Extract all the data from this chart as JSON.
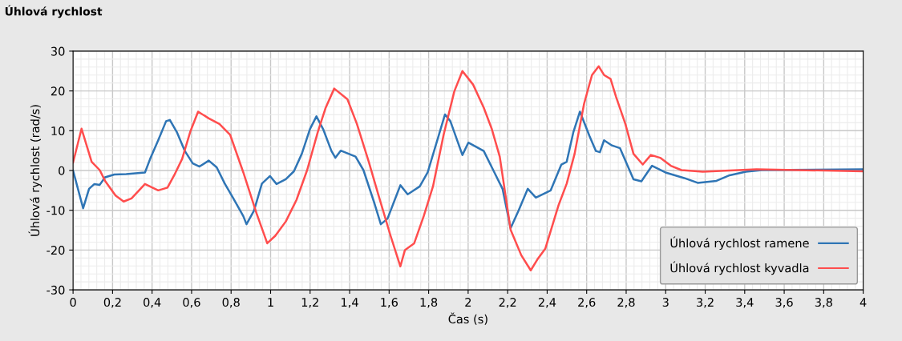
{
  "chart_data": {
    "type": "line",
    "title": "Úhlová rychlost",
    "xlabel": "Čas (s)",
    "ylabel": "Úhlová rychlost (rad/s)",
    "xlim": [
      0,
      4
    ],
    "ylim": [
      -30,
      30
    ],
    "xticks": [
      0,
      {
        "value": 0.2,
        "label": "0,2"
      },
      {
        "value": 0.4,
        "label": "0,4"
      },
      {
        "value": 0.6,
        "label": "0,6"
      },
      {
        "value": 0.8,
        "label": "0,8"
      },
      1,
      {
        "value": 1.2,
        "label": "1,2"
      },
      {
        "value": 1.4,
        "label": "1,4"
      },
      {
        "value": 1.6,
        "label": "1,6"
      },
      {
        "value": 1.8,
        "label": "1,8"
      },
      2,
      {
        "value": 2.2,
        "label": "2,2"
      },
      {
        "value": 2.4,
        "label": "2,4"
      },
      {
        "value": 2.6,
        "label": "2,6"
      },
      {
        "value": 2.8,
        "label": "2,8"
      },
      3,
      {
        "value": 3.2,
        "label": "3,2"
      },
      {
        "value": 3.4,
        "label": "3,4"
      },
      {
        "value": 3.6,
        "label": "3,6"
      },
      {
        "value": 3.8,
        "label": "3,8"
      },
      4
    ],
    "yticks": [
      -30,
      -20,
      -10,
      0,
      10,
      20,
      30
    ],
    "grid": true,
    "legend": "bottom right",
    "line_style": "solid",
    "marker": "none",
    "series": [
      {
        "name": "Úhlová rychlost ramene",
        "color": "#2f75b5",
        "x": [
          0,
          0.051,
          0.081,
          0.108,
          0.135,
          0.162,
          0.209,
          0.269,
          0.364,
          0.39,
          0.431,
          0.471,
          0.49,
          0.525,
          0.566,
          0.606,
          0.64,
          0.687,
          0.727,
          0.768,
          0.808,
          0.862,
          0.878,
          0.916,
          0.956,
          0.997,
          1.03,
          1.077,
          1.118,
          1.158,
          1.199,
          1.232,
          1.266,
          1.308,
          1.328,
          1.355,
          1.43,
          1.47,
          1.524,
          1.558,
          1.592,
          1.626,
          1.657,
          1.694,
          1.755,
          1.795,
          1.836,
          1.883,
          1.91,
          1.971,
          2.001,
          2.079,
          2.133,
          2.174,
          2.215,
          2.255,
          2.302,
          2.343,
          2.418,
          2.472,
          2.499,
          2.533,
          2.566,
          2.614,
          2.647,
          2.667,
          2.688,
          2.728,
          2.769,
          2.837,
          2.877,
          2.931,
          2.999,
          3.094,
          3.162,
          3.257,
          3.324,
          3.406,
          3.487,
          4.0
        ],
        "values": [
          0,
          -9.5,
          -4.6,
          -3.4,
          -3.6,
          -1.7,
          -1.0,
          -0.9,
          -0.5,
          2.9,
          7.6,
          12.4,
          12.7,
          9.7,
          4.9,
          1.8,
          1.0,
          2.5,
          0.8,
          -3.3,
          -6.7,
          -11.5,
          -13.5,
          -10.1,
          -3.3,
          -1.4,
          -3.4,
          -2.2,
          -0.2,
          4.2,
          10.4,
          13.6,
          10.4,
          4.9,
          3.2,
          5.0,
          3.5,
          0.1,
          -8.0,
          -13.5,
          -12.1,
          -7.7,
          -3.7,
          -6.0,
          -4.0,
          -0.5,
          6.3,
          14.1,
          12.4,
          3.9,
          7.0,
          4.9,
          -0.5,
          -4.6,
          -14.5,
          -10.1,
          -4.6,
          -6.8,
          -5.0,
          1.5,
          2.2,
          9.7,
          14.8,
          8.7,
          4.9,
          4.6,
          7.6,
          6.3,
          5.6,
          -2.2,
          -2.7,
          1.2,
          -0.5,
          -1.9,
          -3.1,
          -2.6,
          -1.2,
          -0.3,
          0.1,
          0.3
        ]
      },
      {
        "name": "Úhlová rychlost kyvadla",
        "color": "#ff4d4d",
        "x": [
          0,
          0.043,
          0.094,
          0.135,
          0.162,
          0.215,
          0.256,
          0.296,
          0.364,
          0.431,
          0.478,
          0.512,
          0.552,
          0.593,
          0.633,
          0.687,
          0.741,
          0.795,
          0.862,
          0.929,
          0.983,
          1.024,
          1.077,
          1.131,
          1.185,
          1.239,
          1.279,
          1.322,
          1.389,
          1.437,
          1.497,
          1.545,
          1.606,
          1.657,
          1.68,
          1.727,
          1.775,
          1.822,
          1.876,
          1.93,
          1.971,
          2.025,
          2.079,
          2.12,
          2.16,
          2.215,
          2.269,
          2.317,
          2.35,
          2.391,
          2.458,
          2.499,
          2.539,
          2.587,
          2.627,
          2.661,
          2.688,
          2.721,
          2.749,
          2.796,
          2.837,
          2.884,
          2.925,
          2.972,
          3.026,
          3.08,
          3.188,
          3.324,
          3.46,
          4.0
        ],
        "values": [
          2,
          10.5,
          2.2,
          0.1,
          -2.6,
          -6.3,
          -7.8,
          -7.0,
          -3.4,
          -5.0,
          -4.3,
          -1.2,
          2.9,
          9.7,
          14.8,
          13.1,
          11.7,
          9.0,
          -0.5,
          -10.8,
          -18.3,
          -16.4,
          -12.8,
          -7.4,
          0.1,
          9.7,
          15.8,
          20.6,
          17.9,
          11.7,
          2.2,
          -6.0,
          -16.2,
          -24.1,
          -20.0,
          -18.3,
          -11.5,
          -4.0,
          9.0,
          19.9,
          25.0,
          21.6,
          15.8,
          10.4,
          3.5,
          -14.9,
          -21.3,
          -25.1,
          -22.4,
          -19.6,
          -8.7,
          -3.3,
          4.2,
          16.8,
          24.0,
          26.2,
          24.0,
          23.0,
          18.5,
          11.7,
          4.2,
          1.5,
          3.9,
          3.2,
          1.2,
          0.1,
          -0.3,
          0,
          0.3,
          -0.2
        ]
      }
    ]
  }
}
